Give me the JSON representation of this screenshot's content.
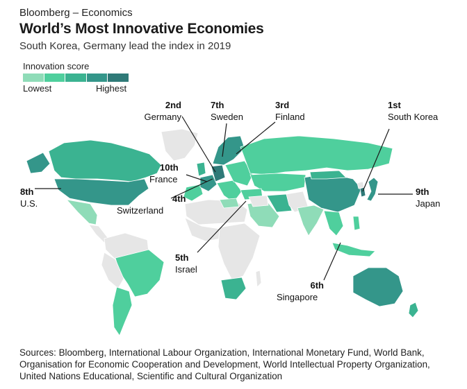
{
  "header": {
    "kicker": "Bloomberg – Economics",
    "title": "World’s Most Innovative Economies",
    "subtitle": "South Korea, Germany lead the index in 2019"
  },
  "legend": {
    "title": "Innovation score",
    "low_label": "Lowest",
    "high_label": "Highest",
    "colors": [
      "#8fdcb8",
      "#4fcf9d",
      "#3bb391",
      "#34968a",
      "#2f7a78"
    ]
  },
  "colors": {
    "no_data": "#e6e6e6",
    "leader_line": "#1a1a1a"
  },
  "callouts": [
    {
      "rank": "1st",
      "country": "South Korea"
    },
    {
      "rank": "2nd",
      "country": "Germany"
    },
    {
      "rank": "3rd",
      "country": "Finland"
    },
    {
      "rank": "4th",
      "country": "Switzerland"
    },
    {
      "rank": "5th",
      "country": "Israel"
    },
    {
      "rank": "6th",
      "country": "Singapore"
    },
    {
      "rank": "7th",
      "country": "Sweden"
    },
    {
      "rank": "8th",
      "country": "U.S."
    },
    {
      "rank": "9th",
      "country": "Japan"
    },
    {
      "rank": "10th",
      "country": "France"
    }
  ],
  "footer": {
    "sources": "Sources: Bloomberg, International Labour Organization, International Monetary Fund, World Bank, Organisation for Economic Cooperation and Development, World Intellectual Property Organization, United Nations Educational, Scientific and Cultural Organization"
  }
}
